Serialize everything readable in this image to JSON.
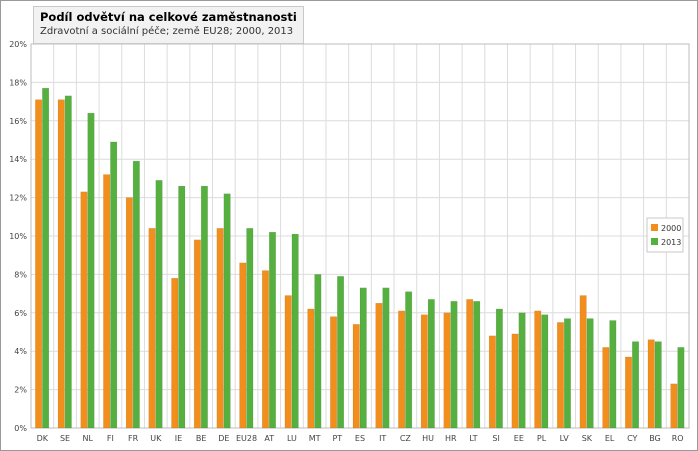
{
  "chart_data": {
    "type": "bar",
    "title": "Podíl odvětví na celkové zaměstnanosti",
    "subtitle": "Zdravotní a sociální péče; země EU28; 2000, 2013",
    "categories": [
      "DK",
      "SE",
      "NL",
      "FI",
      "FR",
      "UK",
      "IE",
      "BE",
      "DE",
      "EU28",
      "AT",
      "LU",
      "MT",
      "PT",
      "ES",
      "IT",
      "CZ",
      "HU",
      "HR",
      "LT",
      "SI",
      "EE",
      "PL",
      "LV",
      "SK",
      "EL",
      "CY",
      "BG",
      "RO"
    ],
    "series": [
      {
        "name": "2000",
        "color": "#f28e1c",
        "values": [
          17.1,
          17.1,
          12.3,
          13.2,
          12.0,
          10.4,
          7.8,
          9.8,
          10.4,
          8.6,
          8.2,
          6.9,
          6.2,
          5.8,
          5.4,
          6.5,
          6.1,
          5.9,
          6.0,
          6.7,
          4.8,
          4.9,
          6.1,
          5.5,
          6.9,
          4.2,
          3.7,
          4.6,
          2.3
        ]
      },
      {
        "name": "2013",
        "color": "#56b03f",
        "values": [
          17.7,
          17.3,
          16.4,
          14.9,
          13.9,
          12.9,
          12.6,
          12.6,
          12.2,
          10.4,
          10.2,
          10.1,
          8.0,
          7.9,
          7.3,
          7.3,
          7.1,
          6.7,
          6.6,
          6.6,
          6.2,
          6.0,
          5.9,
          5.7,
          5.7,
          5.6,
          4.5,
          4.5,
          4.2
        ]
      }
    ],
    "ylim": [
      0,
      20
    ],
    "yticks": [
      "0%",
      "2%",
      "4%",
      "6%",
      "8%",
      "10%",
      "12%",
      "14%",
      "16%",
      "18%",
      "20%"
    ],
    "grid": true,
    "legend_position": "right"
  }
}
